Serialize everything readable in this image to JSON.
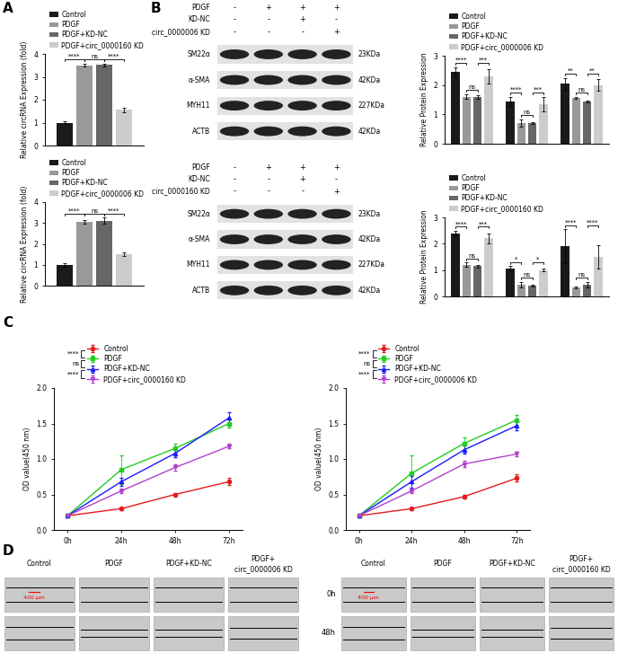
{
  "panel_labels": [
    "A",
    "B",
    "C",
    "D"
  ],
  "chart_data": [
    {
      "type": "bar",
      "categories": [
        null
      ],
      "ylabel": "Relative circRNA Expression (fold)",
      "ylim": [
        0,
        4
      ],
      "yticks": [
        0,
        1,
        2,
        3,
        4
      ],
      "tick_labels": "y",
      "legend": "lower left",
      "series": [
        {
          "name": "Control",
          "color": "#1a1a1a",
          "values": [
            1.0
          ],
          "errors": [
            0.05
          ]
        },
        {
          "name": "PDGF",
          "color": "#999999",
          "values": [
            3.5
          ],
          "errors": [
            0.05
          ]
        },
        {
          "name": "PDGF+KD-NC",
          "color": "#666666",
          "values": [
            3.52
          ],
          "errors": [
            0.05
          ]
        },
        {
          "name": "PDGF+circ_0000160 KD",
          "color": "#cccccc",
          "values": [
            1.55
          ],
          "errors": [
            0.1
          ]
        }
      ],
      "significance": [
        [
          "****",
          "ns",
          "****"
        ]
      ]
    },
    {
      "type": "bar",
      "categories": [
        null
      ],
      "ylabel": "Relative circRNA Expression (fold)",
      "ylim": [
        0,
        4
      ],
      "yticks": [
        0,
        1,
        2,
        3,
        4
      ],
      "tick_labels": "y",
      "legend": "lower left",
      "series": [
        {
          "name": "Control",
          "color": "#1a1a1a",
          "values": [
            1.0
          ],
          "errors": [
            0.08
          ]
        },
        {
          "name": "PDGF",
          "color": "#999999",
          "values": [
            3.05
          ],
          "errors": [
            0.1
          ]
        },
        {
          "name": "PDGF+KD-NC",
          "color": "#666666",
          "values": [
            3.1
          ],
          "errors": [
            0.15
          ]
        },
        {
          "name": "PDGF+circ_0000006 KD",
          "color": "#cccccc",
          "values": [
            1.5
          ],
          "errors": [
            0.1
          ]
        }
      ],
      "significance": [
        [
          "****",
          "ns",
          "****"
        ]
      ]
    },
    {
      "type": "bar",
      "categories": [
        null,
        null,
        null
      ],
      "ylabel": "Relative Protein Expression",
      "ylim": [
        0,
        3
      ],
      "yticks": [
        0,
        1,
        2,
        3
      ],
      "tick_labels": "y",
      "legend": "lower left",
      "series": [
        {
          "name": "Control",
          "color": "#1a1a1a",
          "values": [
            2.45,
            1.45,
            2.05
          ],
          "errors": [
            0.15,
            0.15,
            0.2
          ]
        },
        {
          "name": "PDGF",
          "color": "#999999",
          "values": [
            1.6,
            0.7,
            1.55
          ],
          "errors": [
            0.08,
            0.12,
            0.03
          ]
        },
        {
          "name": "PDGF+KD-NC",
          "color": "#666666",
          "values": [
            1.6,
            0.7,
            1.45
          ],
          "errors": [
            0.06,
            0.03,
            0.03
          ]
        },
        {
          "name": "PDGF+circ_0000006 KD",
          "color": "#cccccc",
          "values": [
            2.3,
            1.35,
            2.0
          ],
          "errors": [
            0.25,
            0.25,
            0.2
          ]
        }
      ],
      "significance": [
        [
          "****",
          "ns",
          "***"
        ],
        [
          "****",
          "ns",
          "***"
        ],
        [
          "**",
          "ns",
          "**"
        ]
      ]
    },
    {
      "type": "bar",
      "categories": [
        null,
        null,
        null
      ],
      "ylabel": "Relative Protein Expression",
      "ylim": [
        0,
        3
      ],
      "yticks": [
        0,
        1,
        2,
        3
      ],
      "tick_labels": "y",
      "legend": "lower left",
      "series": [
        {
          "name": "Control",
          "color": "#1a1a1a",
          "values": [
            2.4,
            1.05,
            1.9
          ],
          "errors": [
            0.1,
            0.1,
            0.65
          ]
        },
        {
          "name": "PDGF",
          "color": "#999999",
          "values": [
            1.2,
            0.45,
            0.35
          ],
          "errors": [
            0.08,
            0.1,
            0.03
          ]
        },
        {
          "name": "PDGF+KD-NC",
          "color": "#666666",
          "values": [
            1.15,
            0.4,
            0.45
          ],
          "errors": [
            0.06,
            0.03,
            0.1
          ]
        },
        {
          "name": "PDGF+circ_0000160 KD",
          "color": "#cccccc",
          "values": [
            2.2,
            1.0,
            1.5
          ],
          "errors": [
            0.2,
            0.05,
            0.45
          ]
        }
      ],
      "significance": [
        [
          "****",
          "ns",
          "***"
        ],
        [
          "*",
          "ns",
          "*"
        ],
        [
          "****",
          "ns",
          "****"
        ]
      ]
    },
    {
      "type": "line",
      "categories": [
        "0h",
        "24h",
        "48h",
        "72h"
      ],
      "ylabel": "OD value(450 nm)",
      "ylim": [
        0,
        2
      ],
      "yticks": [
        {
          "value": 0,
          "label": "0.0"
        },
        0.5,
        {
          "value": 1,
          "label": "1.0"
        },
        1.5,
        {
          "value": 2,
          "label": "2.0"
        }
      ],
      "legend": "lower left",
      "series": [
        {
          "name": "Control",
          "color": "#e41a1c",
          "marker": "circle",
          "values": [
            0.2,
            0.3,
            0.5,
            0.68
          ],
          "errors": [
            0.01,
            0.02,
            0.02,
            0.05
          ]
        },
        {
          "name": "PDGF",
          "color": "#22cc22",
          "marker": "square",
          "values": [
            0.2,
            0.85,
            1.15,
            1.5
          ],
          "errors": [
            0.01,
            0.2,
            0.06,
            0.06
          ]
        },
        {
          "name": "PDGF+KD-NC",
          "color": "#1a1aff",
          "marker": "triangle_up",
          "values": [
            0.2,
            0.68,
            1.08,
            1.58
          ],
          "errors": [
            0.01,
            0.06,
            0.05,
            0.08
          ]
        },
        {
          "name": "PDGF+circ_0000160 KD",
          "color": "#b040d0",
          "marker": "triangle_down",
          "values": [
            0.2,
            0.55,
            0.88,
            1.18
          ],
          "errors": [
            0.01,
            0.03,
            0.05,
            0.03
          ]
        }
      ],
      "significance": [
        "****",
        "ns",
        "****"
      ]
    },
    {
      "type": "line",
      "categories": [
        "0h",
        "24h",
        "48h",
        "72h"
      ],
      "ylabel": "OD value(450 nm)",
      "ylim": [
        0,
        2
      ],
      "yticks": [
        {
          "value": 0,
          "label": "0.0"
        },
        0.5,
        {
          "value": 1,
          "label": "1.0"
        },
        1.5,
        {
          "value": 2,
          "label": "2.0"
        }
      ],
      "legend": "lower left",
      "series": [
        {
          "name": "Control",
          "color": "#e41a1c",
          "marker": "circle",
          "values": [
            0.2,
            0.3,
            0.47,
            0.73
          ],
          "errors": [
            0.01,
            0.02,
            0.03,
            0.05
          ]
        },
        {
          "name": "PDGF",
          "color": "#22cc22",
          "marker": "square",
          "values": [
            0.2,
            0.8,
            1.22,
            1.55
          ],
          "errors": [
            0.01,
            0.25,
            0.08,
            0.07
          ]
        },
        {
          "name": "PDGF+KD-NC",
          "color": "#1a1aff",
          "marker": "triangle_up",
          "values": [
            0.2,
            0.68,
            1.13,
            1.47
          ],
          "errors": [
            0.01,
            0.08,
            0.06,
            0.06
          ]
        },
        {
          "name": "PDGF+circ_0000006 KD",
          "color": "#b040d0",
          "marker": "triangle_down",
          "values": [
            0.2,
            0.55,
            0.93,
            1.07
          ],
          "errors": [
            0.01,
            0.03,
            0.04,
            0.03
          ]
        }
      ],
      "significance": [
        "****",
        "ns",
        "****"
      ]
    }
  ],
  "blots": [
    {
      "conditions": [
        {
          "name": "PDGF",
          "signs": [
            "-",
            "+",
            "+",
            "+"
          ]
        },
        {
          "name": "KD-NC",
          "signs": [
            "-",
            "-",
            "+",
            "-"
          ]
        },
        {
          "name": "circ_0000006 KD",
          "signs": [
            "-",
            "-",
            "-",
            "+"
          ]
        }
      ],
      "bands": [
        {
          "name": "SM22α",
          "size": "23KDa"
        },
        {
          "name": "α-SMA",
          "size": "42KDa"
        },
        {
          "name": "MYH11",
          "size": "227KDa"
        },
        {
          "name": "ACTB",
          "size": "42KDa"
        }
      ]
    },
    {
      "conditions": [
        {
          "name": "PDGF",
          "signs": [
            "-",
            "+",
            "+",
            "+"
          ]
        },
        {
          "name": "KD-NC",
          "signs": [
            "-",
            "-",
            "+",
            "-"
          ]
        },
        {
          "name": "circ_0000160 KD",
          "signs": [
            "-",
            "-",
            "-",
            "+"
          ]
        }
      ],
      "bands": [
        {
          "name": "SM22α",
          "size": "23KDa"
        },
        {
          "name": "α-SMA",
          "size": "42KDa"
        },
        {
          "name": "MYH11",
          "size": "227KDa"
        },
        {
          "name": "ACTB",
          "size": "42KDa"
        }
      ]
    }
  ],
  "scratch_assays": [
    {
      "columns": [
        "Control",
        "PDGF",
        "PDGF+KD-NC",
        "PDGF+\ncirc_0000006 KD"
      ],
      "scale_bar": "400 μm"
    },
    {
      "columns": [
        "Control",
        "PDGF",
        "PDGF+KD-NC",
        "PDGF+\ncirc_0000160 KD"
      ],
      "rows": [
        "0h",
        "48h"
      ],
      "scale_bar": "400 μm"
    }
  ]
}
